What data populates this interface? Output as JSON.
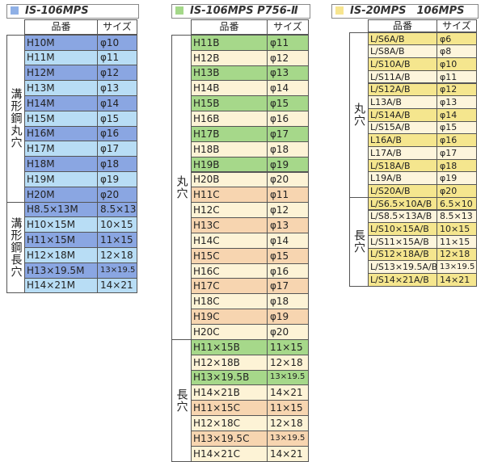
{
  "tables": [
    {
      "title": "IS-106MPS",
      "headers": [
        "品番",
        "サイズ"
      ],
      "groups": [
        {
          "label": "溝形鋼丸穴",
          "rows": [
            [
              "H10M",
              "φ10"
            ],
            [
              "H11M",
              "φ11"
            ],
            [
              "H12M",
              "φ12"
            ],
            [
              "H13M",
              "φ13"
            ],
            [
              "H14M",
              "φ14"
            ],
            [
              "H15M",
              "φ15"
            ],
            [
              "H16M",
              "φ16"
            ],
            [
              "H17M",
              "φ17"
            ],
            [
              "H18M",
              "φ18"
            ],
            [
              "H19M",
              "φ19"
            ],
            [
              "H20M",
              "φ20"
            ]
          ]
        },
        {
          "label": "溝形鋼長穴",
          "rows": [
            [
              "H8.5×13M",
              "8.5×13"
            ],
            [
              "H10×15M",
              "10×15"
            ],
            [
              "H11×15M",
              "11×15"
            ],
            [
              "H12×18M",
              "12×18"
            ],
            [
              "H13×19.5M",
              "13×19.5"
            ],
            [
              "H14×21M",
              "14×21"
            ]
          ]
        }
      ]
    },
    {
      "title": "IS-106MPS P756-Ⅱ",
      "headers": [
        "品番",
        "サイズ"
      ],
      "groups": [
        {
          "label": "丸穴",
          "rows": [
            [
              "H11B",
              "φ11"
            ],
            [
              "H12B",
              "φ12"
            ],
            [
              "H13B",
              "φ13"
            ],
            [
              "H14B",
              "φ14"
            ],
            [
              "H15B",
              "φ15"
            ],
            [
              "H16B",
              "φ16"
            ],
            [
              "H17B",
              "φ17"
            ],
            [
              "H18B",
              "φ18"
            ],
            [
              "H19B",
              "φ19"
            ],
            [
              "H20B",
              "φ20"
            ],
            [
              "H11C",
              "φ11"
            ],
            [
              "H12C",
              "φ12"
            ],
            [
              "H13C",
              "φ13"
            ],
            [
              "H14C",
              "φ14"
            ],
            [
              "H15C",
              "φ15"
            ],
            [
              "H16C",
              "φ16"
            ],
            [
              "H17C",
              "φ17"
            ],
            [
              "H18C",
              "φ18"
            ],
            [
              "H19C",
              "φ19"
            ],
            [
              "H20C",
              "φ20"
            ]
          ]
        },
        {
          "label": "長穴",
          "rows": [
            [
              "H11×15B",
              "11×15"
            ],
            [
              "H12×18B",
              "12×18"
            ],
            [
              "H13×19.5B",
              "13×19.5"
            ],
            [
              "H14×21B",
              "14×21"
            ],
            [
              "H11×15C",
              "11×15"
            ],
            [
              "H12×18C",
              "12×18"
            ],
            [
              "H13×19.5C",
              "13×19.5"
            ],
            [
              "H14×21C",
              "14×21"
            ]
          ]
        }
      ]
    },
    {
      "title": "IS-20MPS　106MPS",
      "headers": [
        "品番",
        "サイズ"
      ],
      "groups": [
        {
          "label": "丸穴",
          "rows": [
            [
              "L/S6A/B",
              "φ6"
            ],
            [
              "L/S8A/B",
              "φ8"
            ],
            [
              "L/S10A/B",
              "φ10"
            ],
            [
              "L/S11A/B",
              "φ11"
            ],
            [
              "L/S12A/B",
              "φ12"
            ],
            [
              "L13A/B",
              "φ13"
            ],
            [
              "L/S14A/B",
              "φ14"
            ],
            [
              "L/S15A/B",
              "φ15"
            ],
            [
              "L16A/B",
              "φ16"
            ],
            [
              "L17A/B",
              "φ17"
            ],
            [
              "L/S18A/B",
              "φ18"
            ],
            [
              "L19A/B",
              "φ19"
            ],
            [
              "L/S20A/B",
              "φ20"
            ]
          ]
        },
        {
          "label": "長穴",
          "rows": [
            [
              "L/S6.5×10A/B",
              "6.5×10"
            ],
            [
              "L/S8.5×13A/B",
              "8.5×13"
            ],
            [
              "L/S10×15A/B",
              "10×15"
            ],
            [
              "L/S11×15A/B",
              "11×15"
            ],
            [
              "L/S12×18A/B",
              "12×18"
            ],
            [
              "L/S13×19.5A/B",
              "13×19.5"
            ],
            [
              "L/S14×21A/B",
              "14×21"
            ]
          ]
        }
      ]
    }
  ]
}
